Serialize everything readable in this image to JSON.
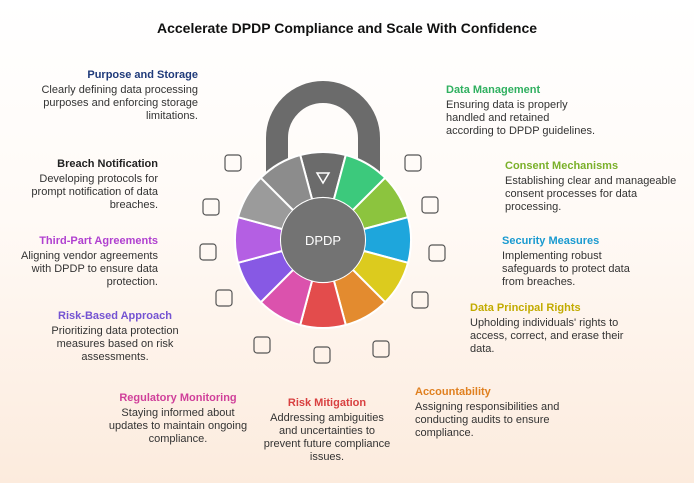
{
  "title": "Accelerate DPDP Compliance and Scale With Confidence",
  "center_label": "DPDP",
  "items": [
    {
      "title": "Purpose and Storage",
      "description": "Clearly defining data processing purposes and enforcing storage limitations."
    },
    {
      "title": "Breach Notification",
      "description": "Developing protocols for prompt notification of data breaches."
    },
    {
      "title": "Third-Part Agreements",
      "description": "Aligning vendor agreements with DPDP to ensure data protection."
    },
    {
      "title": "Risk-Based Approach",
      "description": "Prioritizing data protection measures based on risk assessments."
    },
    {
      "title": "Regulatory Monitoring",
      "description": "Staying informed about updates to maintain ongoing compliance."
    },
    {
      "title": "Risk Mitigation",
      "description": "Addressing ambiguities and uncertainties to prevent future compliance issues."
    },
    {
      "title": "Accountability",
      "description": "Assigning responsibilities and conducting audits to ensure compliance."
    },
    {
      "title": "Data Principal Rights",
      "description": "Upholding individuals' rights to access, correct, and erase their data."
    },
    {
      "title": "Security Measures",
      "description": "Implementing robust safeguards to protect data from breaches."
    },
    {
      "title": "Consent Mechanisms",
      "description": "Establishing clear and manageable consent processes for data processing."
    },
    {
      "title": "Data Management",
      "description": "Ensuring data is properly handled and retained according to DPDP guidelines."
    }
  ]
}
